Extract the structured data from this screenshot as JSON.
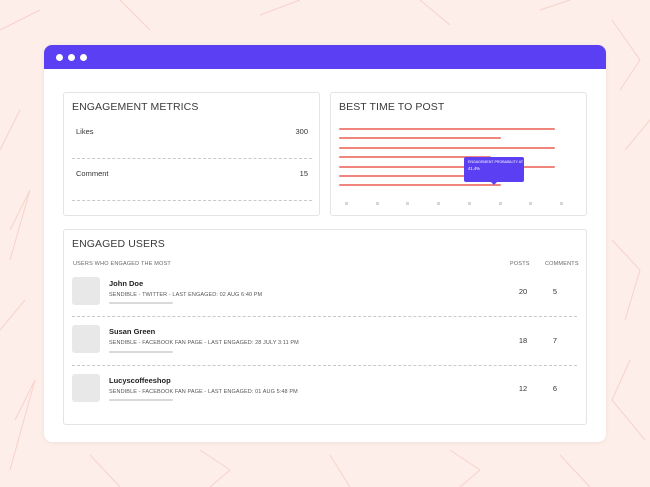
{
  "colors": {
    "accent": "#5b3ff2",
    "bar": "#f0867b",
    "background": "#fdeeea"
  },
  "engagement_metrics": {
    "title": "ENGAGEMENT METRICS",
    "rows": [
      {
        "label": "Likes",
        "value": "300"
      },
      {
        "label": "Comment",
        "value": "15"
      }
    ]
  },
  "best_time": {
    "title": "BEST TIME TO POST",
    "tooltip": {
      "label": "ENGAGEMENT PROBABILITY AT 7PM:",
      "value": "41.4%"
    }
  },
  "engaged_users": {
    "title": "ENGAGED USERS",
    "columns": {
      "users": "USERS WHO ENGAGED THE MOST",
      "posts": "POSTS",
      "comments": "COMMENTS"
    },
    "users": [
      {
        "name": "John Doe",
        "meta": "SENDIBLE - TWITTER - LAST ENGAGED: 02 AUG 6:40 PM",
        "posts": "20",
        "comments": "5"
      },
      {
        "name": "Susan Green",
        "meta": "SENDIBLE - FACEBOOK FAN PAGE - LAST ENGAGED: 28 JULY 3:11 PM",
        "posts": "18",
        "comments": "7"
      },
      {
        "name": "Lucyscoffeeshop",
        "meta": "SENDIBLE - FACEBOOK FAN PAGE - LAST ENGAGED: 01 AUG 5:48 PM",
        "posts": "12",
        "comments": "6"
      }
    ]
  },
  "chart_data": {
    "type": "bar",
    "orientation": "horizontal",
    "values": [
      0.88,
      0.66,
      0.88,
      0.62,
      0.88,
      0.6,
      0.66
    ],
    "x_ticks": 8,
    "highlight": {
      "label": "ENGAGEMENT PROBABILITY AT 7PM:",
      "value": "41.4%"
    }
  }
}
